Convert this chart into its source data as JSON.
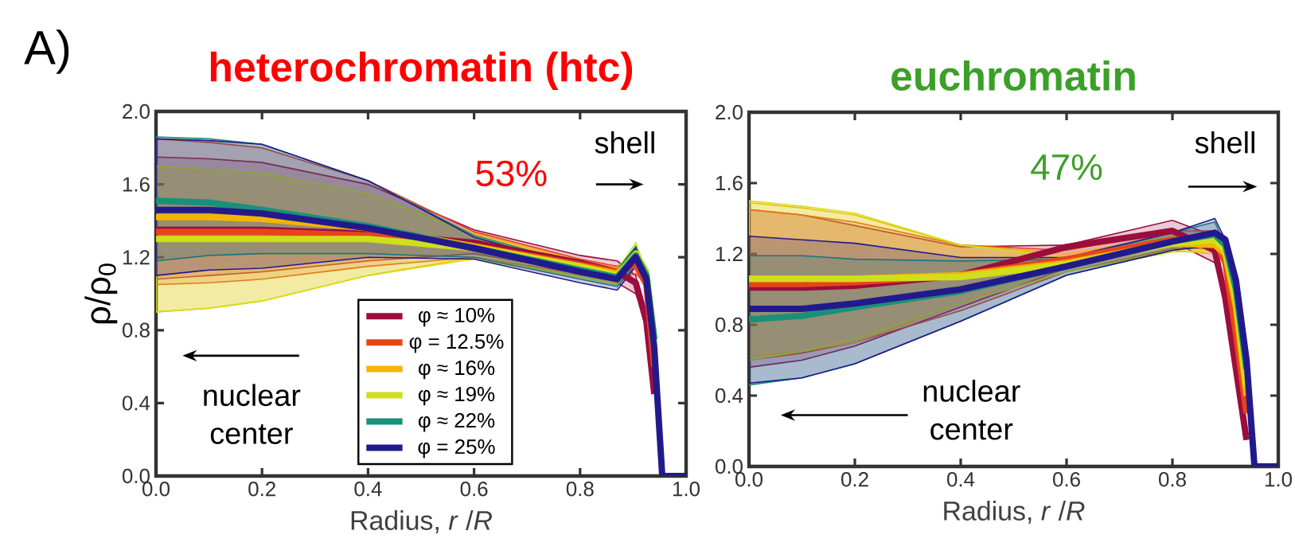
{
  "chart_data": [
    {
      "type": "line",
      "title": "heterochromatin (htc)",
      "xlabel": "Radius, *r* /*R*",
      "ylabel": "ρ/ρ$_{0}$",
      "annotations": [
        "A)",
        "53%",
        "shell",
        "nuclear center"
      ],
      "x": [
        0,
        0.1,
        0.2,
        0.4,
        0.6,
        0.8,
        0.87,
        0.905,
        0.925,
        0.94,
        0.955,
        1.0
      ],
      "xlim": [
        0,
        1.0
      ],
      "xticks": [
        {
          "value": 0,
          "label": "0.0"
        },
        {
          "value": 0.2,
          "label": "0.2"
        },
        {
          "value": 0.4,
          "label": "0.4"
        },
        {
          "value": 0.6,
          "label": "0.6"
        },
        {
          "value": 0.8,
          "label": "0.8"
        },
        {
          "value": 1.0,
          "label": "1.0"
        }
      ],
      "ylim": [
        0,
        2.0
      ],
      "yticks": [
        {
          "value": 0,
          "label": "0.0"
        },
        {
          "value": 0.4,
          "label": "0.4"
        },
        {
          "value": 0.8,
          "label": "0.8"
        },
        {
          "value": 1.2,
          "label": "1.2"
        },
        {
          "value": 1.6,
          "label": "1.6"
        },
        {
          "value": 2.0,
          "label": "2.0"
        }
      ],
      "legend": "bottom",
      "series": [
        {
          "name": "φ ≈ 10%",
          "color": "#9b0d3e",
          "values": [
            1.35,
            1.35,
            1.35,
            1.33,
            1.28,
            1.17,
            1.12,
            1.06,
            0.85,
            0.45,
            null,
            null
          ],
          "upper": [
            1.75,
            1.74,
            1.72,
            1.6,
            1.35,
            1.21,
            1.18,
            1.1,
            0.85,
            0.45,
            null,
            null
          ],
          "lower": [
            1.08,
            1.1,
            1.12,
            1.18,
            1.22,
            1.12,
            1.06,
            1.0,
            0.85,
            0.45,
            null,
            null
          ]
        },
        {
          "name": "φ = 12.5%",
          "color": "#e8441c",
          "values": [
            1.34,
            1.34,
            1.34,
            1.32,
            1.26,
            1.16,
            1.12,
            1.16,
            1.05,
            0.6,
            null,
            null
          ],
          "upper": [
            1.85,
            1.83,
            1.8,
            1.62,
            1.34,
            1.19,
            1.15,
            1.21,
            1.05,
            0.6,
            null,
            null
          ],
          "lower": [
            1.05,
            1.06,
            1.08,
            1.15,
            1.2,
            1.11,
            1.08,
            1.11,
            1.05,
            0.6,
            null,
            null
          ]
        },
        {
          "name": "φ ≈ 16%",
          "color": "#f5b400",
          "values": [
            1.42,
            1.42,
            1.41,
            1.36,
            1.26,
            1.15,
            1.11,
            1.2,
            1.1,
            0.7,
            null,
            null
          ],
          "upper": [
            1.7,
            1.68,
            1.66,
            1.55,
            1.33,
            1.18,
            1.14,
            1.25,
            1.1,
            0.7,
            null,
            null
          ],
          "lower": [
            0.9,
            0.92,
            0.96,
            1.1,
            1.2,
            1.1,
            1.06,
            1.15,
            1.1,
            0.7,
            null,
            null
          ]
        },
        {
          "name": "φ ≈ 19%",
          "color": "#cfe01a",
          "values": [
            1.3,
            1.3,
            1.3,
            1.3,
            1.25,
            1.15,
            1.1,
            1.22,
            1.12,
            0.75,
            null,
            null
          ],
          "upper": [
            1.7,
            1.68,
            1.66,
            1.55,
            1.32,
            1.17,
            1.13,
            1.28,
            1.12,
            0.75,
            null,
            null
          ],
          "lower": [
            0.9,
            0.92,
            0.96,
            1.1,
            1.19,
            1.09,
            1.05,
            1.16,
            1.12,
            0.75,
            null,
            null
          ]
        },
        {
          "name": "φ ≈ 22%",
          "color": "#1a9078",
          "values": [
            1.51,
            1.5,
            1.46,
            1.37,
            1.25,
            1.13,
            1.09,
            1.21,
            1.1,
            0.75,
            null,
            null
          ],
          "upper": [
            1.86,
            1.85,
            1.82,
            1.62,
            1.32,
            1.16,
            1.13,
            1.26,
            1.1,
            0.75,
            null,
            null
          ],
          "lower": [
            1.18,
            1.21,
            1.22,
            1.22,
            1.2,
            1.08,
            1.04,
            1.16,
            1.1,
            0.75,
            null,
            null
          ]
        },
        {
          "name": "φ = 25%",
          "color": "#221a8c",
          "values": [
            1.46,
            1.46,
            1.44,
            1.36,
            1.25,
            1.12,
            1.08,
            1.2,
            1.08,
            0.7,
            0,
            0
          ],
          "upper": [
            1.85,
            1.84,
            1.82,
            1.62,
            1.31,
            1.15,
            1.12,
            1.25,
            1.08,
            0.7,
            0,
            0
          ],
          "lower": [
            1.1,
            1.13,
            1.14,
            1.2,
            1.19,
            1.06,
            1.02,
            1.15,
            1.08,
            0.7,
            0,
            0
          ]
        }
      ]
    },
    {
      "type": "line",
      "title": "euchromatin",
      "xlabel": "Radius, *r* /*R*",
      "annotations": [
        "47%",
        "shell",
        "nuclear center"
      ],
      "x": [
        0,
        0.1,
        0.2,
        0.4,
        0.6,
        0.8,
        0.88,
        0.9,
        0.92,
        0.94,
        0.955,
        1.0
      ],
      "xlim": [
        0,
        1.0
      ],
      "xticks": [
        {
          "value": 0,
          "label": "0.0"
        },
        {
          "value": 0.2,
          "label": "0.2"
        },
        {
          "value": 0.4,
          "label": "0.4"
        },
        {
          "value": 0.6,
          "label": "0.6"
        },
        {
          "value": 0.8,
          "label": "0.8"
        },
        {
          "value": 1.0,
          "label": "1.0"
        }
      ],
      "ylim": [
        0,
        2.0
      ],
      "yticks": [
        {
          "value": 0,
          "label": "0.0"
        },
        {
          "value": 0.4,
          "label": "0.4"
        },
        {
          "value": 0.8,
          "label": "0.8"
        },
        {
          "value": 1.2,
          "label": "1.2"
        },
        {
          "value": 1.6,
          "label": "1.6"
        },
        {
          "value": 2.0,
          "label": "2.0"
        }
      ],
      "series": [
        {
          "color": "#9b0d3e",
          "values": [
            1.01,
            1.01,
            1.02,
            1.08,
            1.24,
            1.33,
            1.22,
            0.95,
            0.55,
            0.15,
            null,
            null
          ],
          "upper": [
            1.45,
            1.42,
            1.36,
            1.24,
            1.25,
            1.39,
            1.3,
            0.95,
            0.55,
            0.15,
            null,
            null
          ],
          "lower": [
            0.56,
            0.6,
            0.68,
            0.9,
            1.12,
            1.27,
            1.15,
            0.95,
            0.55,
            0.15,
            null,
            null
          ]
        },
        {
          "color": "#e8441c",
          "values": [
            1.03,
            1.03,
            1.04,
            1.08,
            1.17,
            1.28,
            1.28,
            1.15,
            0.75,
            0.3,
            null,
            null
          ],
          "upper": [
            1.45,
            1.42,
            1.38,
            1.25,
            1.22,
            1.33,
            1.33,
            1.15,
            0.75,
            0.3,
            null,
            null
          ],
          "lower": [
            0.6,
            0.64,
            0.7,
            0.88,
            1.1,
            1.23,
            1.23,
            1.15,
            0.75,
            0.3,
            null,
            null
          ]
        },
        {
          "color": "#f5b400",
          "values": [
            1.06,
            1.06,
            1.06,
            1.08,
            1.15,
            1.26,
            1.25,
            1.2,
            0.9,
            0.4,
            null,
            null
          ],
          "upper": [
            1.49,
            1.46,
            1.42,
            1.25,
            1.2,
            1.3,
            1.3,
            1.2,
            0.9,
            0.4,
            null,
            null
          ],
          "lower": [
            0.62,
            0.65,
            0.7,
            0.92,
            1.1,
            1.22,
            1.2,
            1.2,
            0.9,
            0.4,
            null,
            null
          ]
        },
        {
          "color": "#cfe01a",
          "values": [
            1.06,
            1.06,
            1.06,
            1.07,
            1.14,
            1.26,
            1.28,
            1.22,
            0.95,
            0.45,
            null,
            null
          ],
          "upper": [
            1.5,
            1.47,
            1.43,
            1.25,
            1.18,
            1.3,
            1.32,
            1.22,
            0.95,
            0.45,
            null,
            null
          ],
          "lower": [
            0.6,
            0.65,
            0.72,
            0.92,
            1.1,
            1.21,
            1.22,
            1.22,
            0.95,
            0.45,
            null,
            null
          ]
        },
        {
          "color": "#1a9078",
          "values": [
            0.83,
            0.85,
            0.9,
            0.99,
            1.13,
            1.27,
            1.31,
            1.25,
            1.0,
            0.55,
            null,
            null
          ],
          "upper": [
            1.19,
            1.19,
            1.17,
            1.16,
            1.17,
            1.32,
            1.38,
            1.25,
            1.0,
            0.55,
            null,
            null
          ],
          "lower": [
            0.46,
            0.5,
            0.58,
            0.82,
            1.08,
            1.22,
            1.25,
            1.25,
            1.0,
            0.55,
            null,
            null
          ]
        },
        {
          "color": "#221a8c",
          "values": [
            0.89,
            0.89,
            0.92,
            1.0,
            1.13,
            1.27,
            1.32,
            1.28,
            1.05,
            0.6,
            0,
            0
          ],
          "upper": [
            1.3,
            1.28,
            1.26,
            1.18,
            1.18,
            1.32,
            1.4,
            1.28,
            1.05,
            0.6,
            0,
            0
          ],
          "lower": [
            0.47,
            0.5,
            0.58,
            0.82,
            1.08,
            1.22,
            1.25,
            1.28,
            1.05,
            0.6,
            0,
            0
          ]
        }
      ]
    }
  ]
}
